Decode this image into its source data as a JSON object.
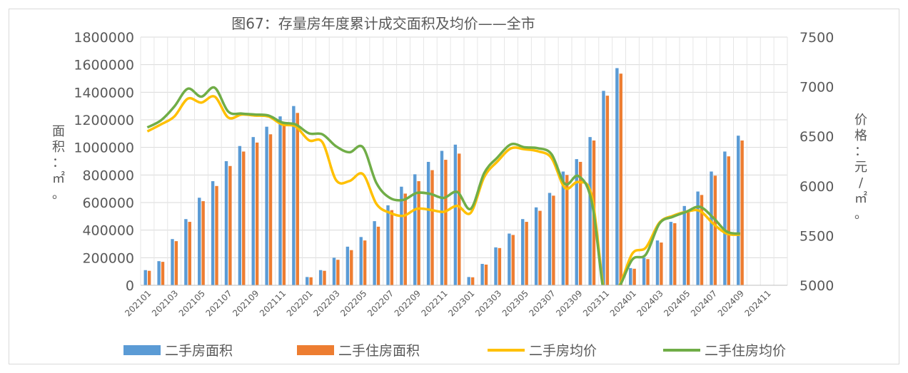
{
  "chart_data": {
    "type": "bar+line",
    "title": "图67：存量房年度累计成交面积及均价——全市",
    "ylabel_left": "面积：㎡。",
    "ylabel_right": "价格：元/㎡。",
    "ylim_left": [
      0,
      1800000
    ],
    "ylim_right": [
      5000,
      7500
    ],
    "yticks_left": [
      "0",
      "200000",
      "400000",
      "600000",
      "800000",
      "1000000",
      "1200000",
      "1400000",
      "1600000",
      "1800000"
    ],
    "yticks_right": [
      "5000",
      "5500",
      "6000",
      "6500",
      "7000",
      "7500"
    ],
    "grid": true,
    "legend_position": "bottom",
    "categories": [
      "202101",
      "202102",
      "202103",
      "202104",
      "202105",
      "202106",
      "202107",
      "202108",
      "202109",
      "202110",
      "202111",
      "202112",
      "202201",
      "202202",
      "202203",
      "202204",
      "202205",
      "202206",
      "202207",
      "202208",
      "202209",
      "202210",
      "202211",
      "202212",
      "202301",
      "202302",
      "202303",
      "202304",
      "202305",
      "202306",
      "202307",
      "202308",
      "202309",
      "202310",
      "202311",
      "202312",
      "202401",
      "202402",
      "202403",
      "202404",
      "202405",
      "202406",
      "202407",
      "202408",
      "202409",
      "202410",
      "202411",
      "202412"
    ],
    "x_tick_labels": [
      "202101",
      "202103",
      "202105",
      "202107",
      "202109",
      "202111",
      "202201",
      "202203",
      "202205",
      "202207",
      "202209",
      "202211",
      "202301",
      "202303",
      "202305",
      "202307",
      "202309",
      "202311",
      "202401",
      "202403",
      "202405",
      "202407",
      "202409",
      "202411"
    ],
    "series": [
      {
        "name": "二手房面积",
        "type": "bar",
        "axis": "left",
        "color": "#5b9bd5",
        "values": [
          110000,
          175000,
          335000,
          480000,
          635000,
          755000,
          900000,
          1010000,
          1075000,
          1150000,
          1225000,
          1300000,
          60000,
          110000,
          200000,
          280000,
          350000,
          465000,
          580000,
          715000,
          805000,
          895000,
          975000,
          1020000,
          60000,
          155000,
          275000,
          375000,
          480000,
          565000,
          670000,
          825000,
          915000,
          1075000,
          1410000,
          1575000,
          125000,
          200000,
          325000,
          460000,
          575000,
          680000,
          825000,
          970000,
          1085000,
          null,
          null,
          null
        ]
      },
      {
        "name": "二手住房面积",
        "type": "bar",
        "axis": "left",
        "color": "#ed7d31",
        "values": [
          105000,
          170000,
          320000,
          460000,
          610000,
          720000,
          865000,
          970000,
          1035000,
          1095000,
          1175000,
          1250000,
          58000,
          105000,
          185000,
          255000,
          325000,
          425000,
          545000,
          665000,
          755000,
          835000,
          910000,
          955000,
          58000,
          150000,
          270000,
          365000,
          460000,
          540000,
          650000,
          800000,
          895000,
          1050000,
          1375000,
          1535000,
          120000,
          190000,
          310000,
          450000,
          545000,
          655000,
          795000,
          935000,
          1050000,
          null,
          null,
          null
        ]
      },
      {
        "name": "二手房均价",
        "type": "line",
        "axis": "right",
        "color": "#ffc000",
        "values": [
          6550,
          6620,
          6700,
          6880,
          6840,
          6900,
          6690,
          6720,
          6710,
          6700,
          6620,
          6600,
          6460,
          6440,
          6060,
          6050,
          6120,
          5820,
          5730,
          5700,
          5770,
          5760,
          5740,
          5800,
          5730,
          6090,
          6250,
          6380,
          6370,
          6350,
          6280,
          5980,
          6040,
          5890,
          4880,
          4990,
          5320,
          5380,
          5630,
          5700,
          5740,
          5750,
          5620,
          5520,
          5510,
          null,
          null,
          null
        ]
      },
      {
        "name": "二手住房均价",
        "type": "line",
        "axis": "right",
        "color": "#70ad47",
        "values": [
          6590,
          6660,
          6800,
          6980,
          6900,
          6990,
          6750,
          6730,
          6720,
          6710,
          6640,
          6620,
          6530,
          6520,
          6400,
          6340,
          6390,
          6030,
          5880,
          5860,
          5930,
          5920,
          5880,
          5940,
          5770,
          6130,
          6290,
          6420,
          6390,
          6380,
          6320,
          6020,
          6100,
          5830,
          4850,
          4980,
          5260,
          5310,
          5620,
          5690,
          5740,
          5790,
          5680,
          5540,
          5520,
          null,
          null,
          null
        ]
      }
    ]
  }
}
